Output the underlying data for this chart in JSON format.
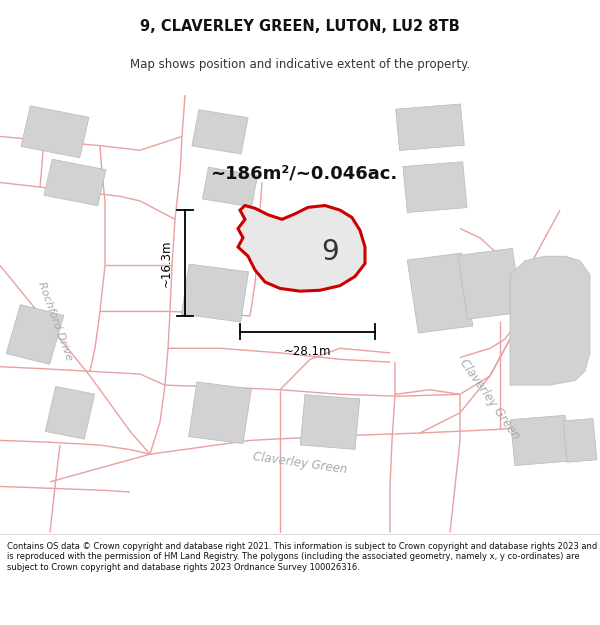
{
  "title_line1": "9, CLAVERLEY GREEN, LUTON, LU2 8TB",
  "title_line2": "Map shows position and indicative extent of the property.",
  "footer_text": "Contains OS data © Crown copyright and database right 2021. This information is subject to Crown copyright and database rights 2023 and is reproduced with the permission of HM Land Registry. The polygons (including the associated geometry, namely x, y co-ordinates) are subject to Crown copyright and database rights 2023 Ordnance Survey 100026316.",
  "area_label": "~186m²/~0.046ac.",
  "number_label": "9",
  "dim_width": "~28.1m",
  "dim_height": "~16.3m",
  "road_label_bottom": "Claverley Green",
  "road_label_right": "Claverley Green",
  "road_label_left": "Rochford Drive",
  "bg_color": "#ffffff",
  "map_bg": "#f0f0f0",
  "road_line_color": "#e8a0a0",
  "building_color": "#d2d2d2",
  "building_edge": "#b8b8b8",
  "highlight_color": "#cc0000",
  "dim_color": "#000000"
}
